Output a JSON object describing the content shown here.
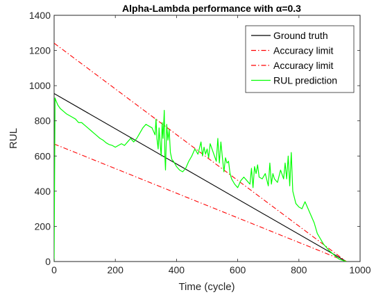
{
  "chart_data": {
    "type": "line",
    "title": "Alpha-Lambda performance with α=0.3",
    "xlabel": "Time (cycle)",
    "ylabel": "RUL",
    "xlim": [
      0,
      1000
    ],
    "ylim": [
      0,
      1400
    ],
    "xticks": [
      0,
      200,
      400,
      600,
      800,
      1000
    ],
    "yticks": [
      0,
      200,
      400,
      600,
      800,
      1000,
      1200,
      1400
    ],
    "grid": false,
    "legend_position": "top-right",
    "series": [
      {
        "name": "Ground truth",
        "color": "#000000",
        "style": "solid",
        "x": [
          0,
          955
        ],
        "y": [
          955,
          0
        ]
      },
      {
        "name": "Accuracy limit",
        "color": "#ff0000",
        "style": "dashdot",
        "x": [
          0,
          955
        ],
        "y": [
          1241.5,
          0
        ]
      },
      {
        "name": "Accuracy limit",
        "color": "#ff0000",
        "style": "dashdot",
        "x": [
          0,
          955
        ],
        "y": [
          668.5,
          0
        ]
      },
      {
        "name": "RUL prediction",
        "color": "#00ff00",
        "style": "solid",
        "x": [
          0,
          3,
          6,
          12,
          20,
          30,
          40,
          50,
          60,
          70,
          80,
          90,
          100,
          110,
          120,
          130,
          140,
          150,
          160,
          170,
          180,
          190,
          200,
          210,
          220,
          230,
          240,
          250,
          260,
          270,
          280,
          290,
          300,
          310,
          320,
          330,
          333,
          336,
          340,
          343,
          346,
          350,
          353,
          356,
          360,
          362,
          364,
          368,
          372,
          376,
          380,
          385,
          390,
          400,
          410,
          420,
          430,
          440,
          450,
          460,
          470,
          480,
          485,
          490,
          495,
          500,
          505,
          510,
          520,
          530,
          535,
          540,
          545,
          550,
          555,
          560,
          565,
          570,
          575,
          580,
          590,
          600,
          610,
          620,
          630,
          640,
          645,
          650,
          655,
          660,
          665,
          670,
          680,
          690,
          700,
          705,
          710,
          715,
          720,
          730,
          740,
          750,
          755,
          760,
          765,
          770,
          775,
          780,
          790,
          800,
          810,
          820,
          830,
          840,
          850,
          860,
          870,
          880,
          890,
          900,
          910,
          920,
          930,
          940,
          950,
          955
        ],
        "y": [
          0,
          930,
          915,
          890,
          870,
          855,
          840,
          830,
          820,
          810,
          790,
          790,
          775,
          760,
          745,
          730,
          715,
          700,
          690,
          675,
          665,
          660,
          650,
          660,
          670,
          660,
          680,
          700,
          680,
          700,
          730,
          760,
          780,
          770,
          760,
          720,
          810,
          700,
          640,
          760,
          680,
          600,
          790,
          700,
          860,
          600,
          520,
          780,
          690,
          750,
          620,
          580,
          570,
          540,
          520,
          510,
          530,
          570,
          600,
          640,
          610,
          680,
          600,
          650,
          610,
          640,
          590,
          670,
          620,
          570,
          700,
          560,
          680,
          590,
          510,
          590,
          560,
          570,
          500,
          470,
          440,
          420,
          460,
          480,
          460,
          440,
          530,
          420,
          540,
          500,
          550,
          480,
          470,
          500,
          430,
          560,
          440,
          500,
          470,
          450,
          520,
          470,
          560,
          470,
          600,
          430,
          620,
          400,
          330,
          310,
          300,
          340,
          300,
          260,
          220,
          160,
          130,
          100,
          80,
          60,
          45,
          30,
          15,
          8,
          3,
          0
        ]
      }
    ]
  }
}
